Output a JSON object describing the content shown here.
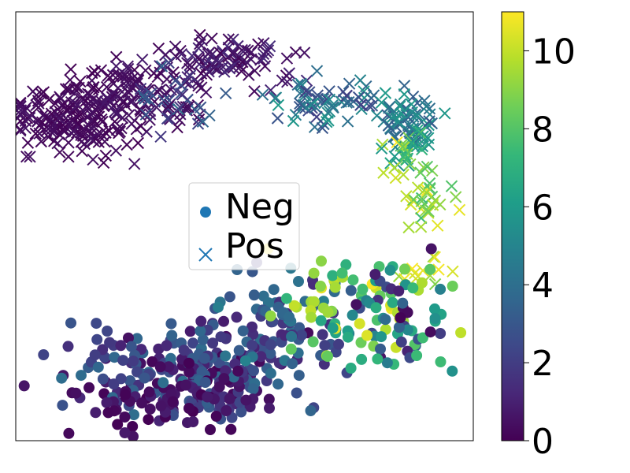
{
  "chart_data": {
    "type": "scatter",
    "title": "",
    "xlabel": "",
    "ylabel": "",
    "axis_ticks": "none",
    "xlim": [
      0,
      100
    ],
    "ylim": [
      0,
      100
    ],
    "color_scale": {
      "name": "viridis",
      "range": [
        0,
        11
      ],
      "ticks": [
        "0",
        "2",
        "4",
        "6",
        "8",
        "10"
      ],
      "tick_values": [
        0,
        2,
        4,
        6,
        8,
        10
      ],
      "stops": [
        "#440154",
        "#482878",
        "#3e4989",
        "#31688e",
        "#26828e",
        "#1f9e89",
        "#35b779",
        "#6ece58",
        "#b5de2b",
        "#fde725"
      ]
    },
    "legend": {
      "position": "center-left",
      "entries": [
        {
          "label": "Neg",
          "marker": "circle",
          "color": "#1f77b4"
        },
        {
          "label": "Pos",
          "marker": "x",
          "color": "#1f77b4"
        }
      ]
    },
    "series": [
      {
        "name": "Pos",
        "marker": "x",
        "clusters": [
          {
            "cx": 12,
            "cy": 75,
            "sx": 6,
            "sy": 4,
            "n": 170,
            "v": [
              0,
              0.6
            ],
            "seed": 11
          },
          {
            "cx": 26,
            "cy": 82,
            "sx": 6,
            "sy": 4,
            "n": 100,
            "v": [
              0,
              0.8
            ],
            "seed": 12
          },
          {
            "cx": 45,
            "cy": 88,
            "sx": 7,
            "sy": 3,
            "n": 100,
            "v": [
              0,
              1.5
            ],
            "seed": 13
          },
          {
            "cx": 35,
            "cy": 79,
            "sx": 5,
            "sy": 3,
            "n": 40,
            "v": [
              0,
              4
            ],
            "seed": 14
          },
          {
            "cx": 67,
            "cy": 79,
            "sx": 7,
            "sy": 3,
            "n": 70,
            "v": [
              2,
              6
            ],
            "seed": 15
          },
          {
            "cx": 86,
            "cy": 75,
            "sx": 3,
            "sy": 3,
            "n": 60,
            "v": [
              3,
              6
            ],
            "seed": 16
          },
          {
            "cx": 86,
            "cy": 67,
            "sx": 3,
            "sy": 3,
            "n": 40,
            "v": [
              5,
              11
            ],
            "seed": 17
          },
          {
            "cx": 90,
            "cy": 55,
            "sx": 3,
            "sy": 3,
            "n": 30,
            "v": [
              7,
              11
            ],
            "seed": 18
          },
          {
            "cx": 90,
            "cy": 40,
            "sx": 3,
            "sy": 2,
            "n": 12,
            "v": [
              7,
              11
            ],
            "seed": 19
          }
        ]
      },
      {
        "name": "Neg",
        "marker": "circle",
        "clusters": [
          {
            "cx": 38,
            "cy": 16,
            "sx": 13,
            "sy": 6,
            "n": 230,
            "v": [
              0,
              4
            ],
            "seed": 21
          },
          {
            "cx": 33,
            "cy": 10,
            "sx": 10,
            "sy": 4,
            "n": 60,
            "v": [
              0,
              1
            ],
            "seed": 22
          },
          {
            "cx": 58,
            "cy": 27,
            "sx": 10,
            "sy": 6,
            "n": 80,
            "v": [
              1,
              5
            ],
            "seed": 23
          },
          {
            "cx": 72,
            "cy": 32,
            "sx": 9,
            "sy": 6,
            "n": 70,
            "v": [
              6,
              11
            ],
            "seed": 24
          },
          {
            "cx": 82,
            "cy": 27,
            "sx": 6,
            "sy": 7,
            "n": 50,
            "v": [
              0,
              8
            ],
            "seed": 25
          }
        ]
      }
    ]
  }
}
